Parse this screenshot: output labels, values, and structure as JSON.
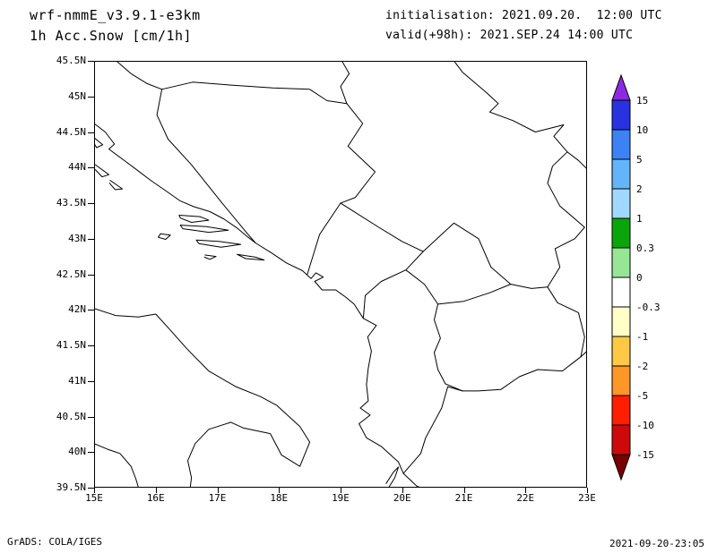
{
  "header": {
    "model": "wrf-nmmE_v3.9.1-e3km",
    "field": "1h Acc.Snow [cm/1h]",
    "init_label": "initialisation: 2021.09.20.  12:00 UTC",
    "valid_label": "valid(+98h): 2021.SEP.24 14:00 UTC"
  },
  "footer": {
    "left": "GrADS: COLA/IGES",
    "right": "2021-09-20-23:05"
  },
  "colorbar": {
    "unit": "cm/1h",
    "labels": [
      "15",
      "10",
      "5",
      "2",
      "1",
      "0.3",
      "0",
      "-0.3",
      "-1",
      "-2",
      "-5",
      "-10",
      "-15"
    ],
    "band_colors": [
      "#2832e0",
      "#3c82f5",
      "#64b4fa",
      "#a0d8ff",
      "#0aa50a",
      "#96e696",
      "#ffffff",
      "#ffffc8",
      "#ffc846",
      "#ff9628",
      "#ff1e00",
      "#cc0a0a"
    ],
    "arrow_top_color": "#8a2be2",
    "arrow_bottom_color": "#780000",
    "outline_color": "#000000"
  },
  "map": {
    "lon_min": 15,
    "lon_max": 23,
    "lat_min": 39.5,
    "lat_max": 45.5,
    "background": "#ffffff",
    "line_color": "#000000",
    "x_ticks": [
      {
        "lon": 15,
        "label": "15E"
      },
      {
        "lon": 16,
        "label": "16E"
      },
      {
        "lon": 17,
        "label": "17E"
      },
      {
        "lon": 18,
        "label": "18E"
      },
      {
        "lon": 19,
        "label": "19E"
      },
      {
        "lon": 20,
        "label": "20E"
      },
      {
        "lon": 21,
        "label": "21E"
      },
      {
        "lon": 22,
        "label": "22E"
      },
      {
        "lon": 23,
        "label": "23E"
      }
    ],
    "y_ticks": [
      {
        "lat": 45.5,
        "label": "45.5N"
      },
      {
        "lat": 45,
        "label": "45N"
      },
      {
        "lat": 44.5,
        "label": "44.5N"
      },
      {
        "lat": 44,
        "label": "44N"
      },
      {
        "lat": 43.5,
        "label": "43.5N"
      },
      {
        "lat": 43,
        "label": "43N"
      },
      {
        "lat": 42.5,
        "label": "42.5N"
      },
      {
        "lat": 42,
        "label": "42N"
      },
      {
        "lat": 41.5,
        "label": "41.5N"
      },
      {
        "lat": 41,
        "label": "41N"
      },
      {
        "lat": 40.5,
        "label": "40.5N"
      },
      {
        "lat": 40,
        "label": "40N"
      },
      {
        "lat": 39.5,
        "label": "39.5N"
      }
    ],
    "outlines": [
      {
        "name": "adriatic-east-coast",
        "points": [
          [
            15.0,
            44.62
          ],
          [
            15.18,
            44.5
          ],
          [
            15.33,
            44.33
          ],
          [
            15.24,
            44.26
          ],
          [
            15.52,
            44.08
          ],
          [
            15.72,
            43.95
          ],
          [
            15.92,
            43.82
          ],
          [
            16.12,
            43.7
          ],
          [
            16.4,
            43.53
          ],
          [
            16.62,
            43.45
          ],
          [
            16.88,
            43.38
          ],
          [
            17.1,
            43.28
          ],
          [
            17.32,
            43.15
          ],
          [
            17.5,
            43.02
          ],
          [
            17.62,
            42.94
          ],
          [
            17.88,
            42.8
          ],
          [
            18.12,
            42.66
          ],
          [
            18.38,
            42.55
          ],
          [
            18.52,
            42.44
          ],
          [
            18.6,
            42.52
          ],
          [
            18.72,
            42.46
          ],
          [
            18.58,
            42.4
          ],
          [
            18.7,
            42.28
          ],
          [
            18.92,
            42.28
          ],
          [
            19.08,
            42.18
          ],
          [
            19.22,
            42.08
          ],
          [
            19.37,
            41.88
          ],
          [
            19.58,
            41.78
          ],
          [
            19.44,
            41.62
          ],
          [
            19.5,
            41.42
          ],
          [
            19.45,
            41.18
          ],
          [
            19.42,
            40.95
          ],
          [
            19.45,
            40.72
          ],
          [
            19.32,
            40.62
          ],
          [
            19.48,
            40.52
          ],
          [
            19.3,
            40.4
          ],
          [
            19.42,
            40.2
          ],
          [
            19.66,
            40.08
          ],
          [
            19.94,
            39.86
          ],
          [
            20.02,
            39.7
          ],
          [
            20.24,
            39.52
          ],
          [
            20.3,
            39.5
          ]
        ]
      },
      {
        "name": "italy-east-coast",
        "points": [
          [
            15.0,
            42.02
          ],
          [
            15.35,
            41.92
          ],
          [
            15.72,
            41.9
          ],
          [
            16.0,
            41.94
          ],
          [
            16.2,
            41.75
          ],
          [
            16.52,
            41.44
          ],
          [
            16.86,
            41.14
          ],
          [
            17.3,
            40.92
          ],
          [
            17.7,
            40.78
          ],
          [
            17.96,
            40.66
          ],
          [
            18.34,
            40.36
          ],
          [
            18.5,
            40.14
          ],
          [
            18.34,
            39.8
          ],
          [
            18.04,
            39.96
          ],
          [
            17.86,
            40.26
          ],
          [
            17.42,
            40.34
          ],
          [
            17.22,
            40.42
          ],
          [
            16.86,
            40.32
          ],
          [
            16.64,
            40.12
          ],
          [
            16.52,
            39.88
          ],
          [
            16.58,
            39.64
          ],
          [
            16.56,
            39.5
          ]
        ]
      },
      {
        "name": "italy-west-coast",
        "points": [
          [
            15.0,
            40.12
          ],
          [
            15.22,
            40.04
          ],
          [
            15.42,
            39.98
          ],
          [
            15.6,
            39.8
          ],
          [
            15.68,
            39.62
          ],
          [
            15.72,
            39.5
          ]
        ]
      },
      {
        "name": "island-pag",
        "points": [
          [
            15.0,
            44.42
          ],
          [
            15.14,
            44.32
          ],
          [
            15.04,
            44.28
          ],
          [
            15.0,
            44.34
          ]
        ]
      },
      {
        "name": "island-dugi-otok",
        "points": [
          [
            15.02,
            44.04
          ],
          [
            15.24,
            43.9
          ],
          [
            15.13,
            43.87
          ],
          [
            15.02,
            43.97
          ]
        ]
      },
      {
        "name": "island-kornati",
        "points": [
          [
            15.26,
            43.82
          ],
          [
            15.46,
            43.7
          ],
          [
            15.34,
            43.69
          ],
          [
            15.25,
            43.78
          ]
        ]
      },
      {
        "name": "island-vis",
        "points": [
          [
            16.08,
            43.07
          ],
          [
            16.24,
            43.05
          ],
          [
            16.16,
            42.99
          ],
          [
            16.04,
            43.02
          ],
          [
            16.08,
            43.07
          ]
        ]
      },
      {
        "name": "island-brac",
        "points": [
          [
            16.38,
            43.33
          ],
          [
            16.72,
            43.31
          ],
          [
            16.86,
            43.26
          ],
          [
            16.58,
            43.23
          ],
          [
            16.4,
            43.29
          ],
          [
            16.38,
            43.33
          ]
        ]
      },
      {
        "name": "island-hvar",
        "points": [
          [
            16.4,
            43.19
          ],
          [
            16.82,
            43.17
          ],
          [
            17.18,
            43.12
          ],
          [
            16.86,
            43.09
          ],
          [
            16.44,
            43.14
          ],
          [
            16.4,
            43.19
          ]
        ]
      },
      {
        "name": "island-korcula",
        "points": [
          [
            16.66,
            42.98
          ],
          [
            17.04,
            42.96
          ],
          [
            17.38,
            42.92
          ],
          [
            17.06,
            42.88
          ],
          [
            16.7,
            42.93
          ],
          [
            16.66,
            42.98
          ]
        ]
      },
      {
        "name": "island-mljet",
        "points": [
          [
            17.32,
            42.78
          ],
          [
            17.62,
            42.74
          ],
          [
            17.76,
            42.7
          ],
          [
            17.46,
            42.72
          ],
          [
            17.32,
            42.78
          ]
        ]
      },
      {
        "name": "island-lastovo",
        "points": [
          [
            16.8,
            42.77
          ],
          [
            16.98,
            42.75
          ],
          [
            16.88,
            42.71
          ],
          [
            16.79,
            42.74
          ]
        ]
      },
      {
        "name": "island-corfu",
        "points": [
          [
            19.74,
            39.56
          ],
          [
            19.86,
            39.72
          ],
          [
            19.94,
            39.79
          ],
          [
            19.88,
            39.64
          ],
          [
            19.78,
            39.5
          ]
        ]
      },
      {
        "name": "border-slovenia-croatia",
        "points": [
          [
            15.36,
            45.5
          ],
          [
            15.6,
            45.32
          ],
          [
            15.86,
            45.18
          ],
          [
            16.1,
            45.1
          ]
        ]
      },
      {
        "name": "border-sava",
        "points": [
          [
            16.1,
            45.1
          ],
          [
            16.6,
            45.2
          ],
          [
            17.2,
            45.16
          ],
          [
            17.9,
            45.12
          ],
          [
            18.5,
            45.1
          ],
          [
            18.78,
            44.94
          ],
          [
            19.1,
            44.9
          ]
        ]
      },
      {
        "name": "border-croatia-serbia",
        "points": [
          [
            19.1,
            44.9
          ],
          [
            19.0,
            45.14
          ],
          [
            19.14,
            45.32
          ],
          [
            19.02,
            45.5
          ]
        ]
      },
      {
        "name": "border-croatia-bosnia",
        "points": [
          [
            16.1,
            45.1
          ],
          [
            16.02,
            44.74
          ],
          [
            16.2,
            44.4
          ],
          [
            16.58,
            44.04
          ],
          [
            17.06,
            43.52
          ],
          [
            17.46,
            43.1
          ],
          [
            17.62,
            42.94
          ]
        ]
      },
      {
        "name": "border-drina",
        "points": [
          [
            19.1,
            44.9
          ],
          [
            19.36,
            44.62
          ],
          [
            19.12,
            44.3
          ],
          [
            19.56,
            43.94
          ],
          [
            19.24,
            43.58
          ],
          [
            19.0,
            43.5
          ]
        ]
      },
      {
        "name": "border-bosnia-montenegro",
        "points": [
          [
            19.0,
            43.5
          ],
          [
            18.66,
            43.06
          ],
          [
            18.46,
            42.5
          ]
        ]
      },
      {
        "name": "border-serbia-montenegro",
        "points": [
          [
            19.0,
            43.5
          ],
          [
            19.62,
            43.16
          ],
          [
            20.0,
            42.96
          ],
          [
            20.34,
            42.82
          ]
        ]
      },
      {
        "name": "border-montenegro-albania",
        "points": [
          [
            19.37,
            41.88
          ],
          [
            19.4,
            42.2
          ],
          [
            19.66,
            42.4
          ],
          [
            20.06,
            42.56
          ],
          [
            20.34,
            42.82
          ]
        ]
      },
      {
        "name": "border-kosovo-serbia",
        "points": [
          [
            20.34,
            42.82
          ],
          [
            20.84,
            43.22
          ],
          [
            21.24,
            43.0
          ],
          [
            21.44,
            42.6
          ],
          [
            21.76,
            42.36
          ]
        ]
      },
      {
        "name": "border-kosovo-macedonia",
        "points": [
          [
            20.58,
            42.08
          ],
          [
            21.0,
            42.12
          ],
          [
            21.42,
            42.24
          ],
          [
            21.76,
            42.36
          ]
        ]
      },
      {
        "name": "border-serbia-macedonia",
        "points": [
          [
            21.76,
            42.36
          ],
          [
            22.1,
            42.3
          ],
          [
            22.36,
            42.32
          ]
        ]
      },
      {
        "name": "border-macedonia-bulgaria",
        "points": [
          [
            22.36,
            42.32
          ],
          [
            22.52,
            42.1
          ],
          [
            22.86,
            41.96
          ],
          [
            22.96,
            41.62
          ],
          [
            22.9,
            41.34
          ]
        ]
      },
      {
        "name": "border-bulgaria-edge",
        "points": [
          [
            22.9,
            41.34
          ],
          [
            23.0,
            41.42
          ]
        ]
      },
      {
        "name": "border-macedonia-greece",
        "points": [
          [
            22.9,
            41.34
          ],
          [
            22.6,
            41.14
          ],
          [
            22.2,
            41.16
          ],
          [
            21.9,
            41.06
          ],
          [
            21.6,
            40.88
          ],
          [
            21.24,
            40.86
          ],
          [
            20.98,
            40.86
          ]
        ]
      },
      {
        "name": "border-albania-greece",
        "points": [
          [
            20.98,
            40.86
          ],
          [
            20.74,
            40.92
          ],
          [
            20.64,
            40.62
          ],
          [
            20.38,
            40.2
          ],
          [
            20.3,
            39.98
          ],
          [
            20.02,
            39.7
          ]
        ]
      },
      {
        "name": "border-albania-east",
        "points": [
          [
            20.98,
            40.86
          ],
          [
            20.7,
            40.96
          ],
          [
            20.58,
            41.16
          ],
          [
            20.52,
            41.4
          ],
          [
            20.62,
            41.6
          ],
          [
            20.52,
            41.86
          ],
          [
            20.58,
            42.08
          ],
          [
            20.36,
            42.36
          ],
          [
            20.06,
            42.56
          ]
        ]
      },
      {
        "name": "border-serbia-bulgaria",
        "points": [
          [
            22.36,
            42.32
          ],
          [
            22.56,
            42.6
          ],
          [
            22.48,
            42.86
          ],
          [
            22.8,
            43.0
          ],
          [
            22.96,
            43.16
          ],
          [
            22.56,
            43.46
          ],
          [
            22.36,
            43.78
          ],
          [
            22.44,
            44.02
          ],
          [
            22.68,
            44.22
          ]
        ]
      },
      {
        "name": "border-serbia-romania-danube",
        "points": [
          [
            22.68,
            44.22
          ],
          [
            22.46,
            44.44
          ],
          [
            22.62,
            44.6
          ],
          [
            22.16,
            44.5
          ],
          [
            21.8,
            44.66
          ],
          [
            21.42,
            44.78
          ],
          [
            21.56,
            44.9
          ],
          [
            21.36,
            45.06
          ],
          [
            20.98,
            45.34
          ],
          [
            20.84,
            45.5
          ]
        ]
      },
      {
        "name": "border-bulgaria-romania",
        "points": [
          [
            22.68,
            44.22
          ],
          [
            22.86,
            44.1
          ],
          [
            23.0,
            43.98
          ]
        ]
      }
    ]
  }
}
